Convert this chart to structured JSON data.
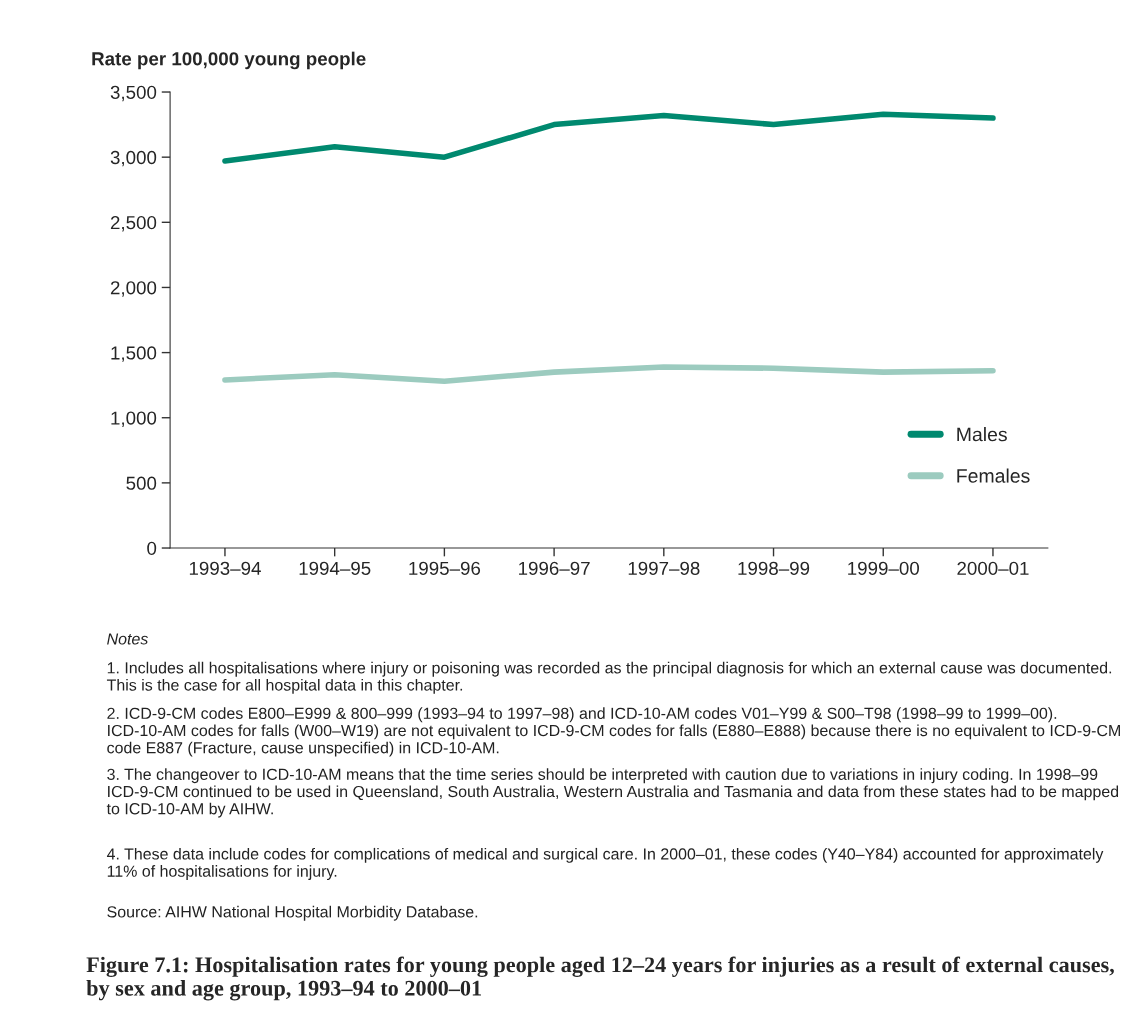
{
  "chart_data": {
    "type": "line",
    "title": "Figure 7.1: Hospitalisation rates for young people aged 12–24 years for injuries as a result of external causes, by sex and age group, 1993–94 to 2000–01",
    "ylabel": "Rate per 100,000 young people",
    "categories": [
      "1993–94",
      "1994–95",
      "1995–96",
      "1996–97",
      "1997–98",
      "1998–99",
      "1999–00",
      "2000–01"
    ],
    "series": [
      {
        "name": "Males",
        "color": "#00896f",
        "values": [
          2970,
          3080,
          3000,
          3250,
          3320,
          3250,
          3330,
          3300
        ]
      },
      {
        "name": "Females",
        "color": "#9ccbbf",
        "values": [
          1290,
          1330,
          1280,
          1350,
          1390,
          1380,
          1350,
          1360
        ]
      }
    ],
    "ylim": [
      0,
      3500
    ],
    "yticks": [
      {
        "value": 0,
        "label": "0"
      },
      {
        "value": 500,
        "label": "500"
      },
      {
        "value": 1000,
        "label": "1,000"
      },
      {
        "value": 1500,
        "label": "1,500"
      },
      {
        "value": 2000,
        "label": "2,000"
      },
      {
        "value": 2500,
        "label": "2,500"
      },
      {
        "value": 3000,
        "label": "3,000"
      },
      {
        "value": 3500,
        "label": "3,500"
      }
    ],
    "grid": false,
    "legend": "right",
    "marker": "none",
    "line_style": "solid",
    "annotations": [
      "Notes",
      "1. Includes all hospitalisations where injury or poisoning was recorded as the principal diagnosis for which an external cause was documented. This is the case for all hospital data in this chapter.",
      "2. ICD-9-CM codes E800–E999 & 800–999 (1993–94 to 1997–98) and ICD-10-AM codes V01–Y99 & S00–T98 (1998–99 to 1999–00). ICD-10-AM codes for falls (W00–W19) are not equivalent to ICD-9-CM codes for falls (E880–E888) because there is no equivalent to ICD-9-CM code E887 (Fracture, cause unspecified) in ICD-10-AM.",
      "3. The changeover to ICD-10-AM means that the time series should be interpreted with caution due to variations in injury coding. In 1998–99 ICD-9-CM continued to be used in Queensland, South Australia, Western Australia and Tasmania and data from these states had to be mapped to ICD-10-AM by AIHW.",
      "4. These data include codes for complications of medical and surgical care. In 2000–01, these codes (Y40–Y84) accounted for approximately 11% of hospitalisations for injury.",
      "Source: AIHW National Hospital Morbidity Database."
    ]
  }
}
